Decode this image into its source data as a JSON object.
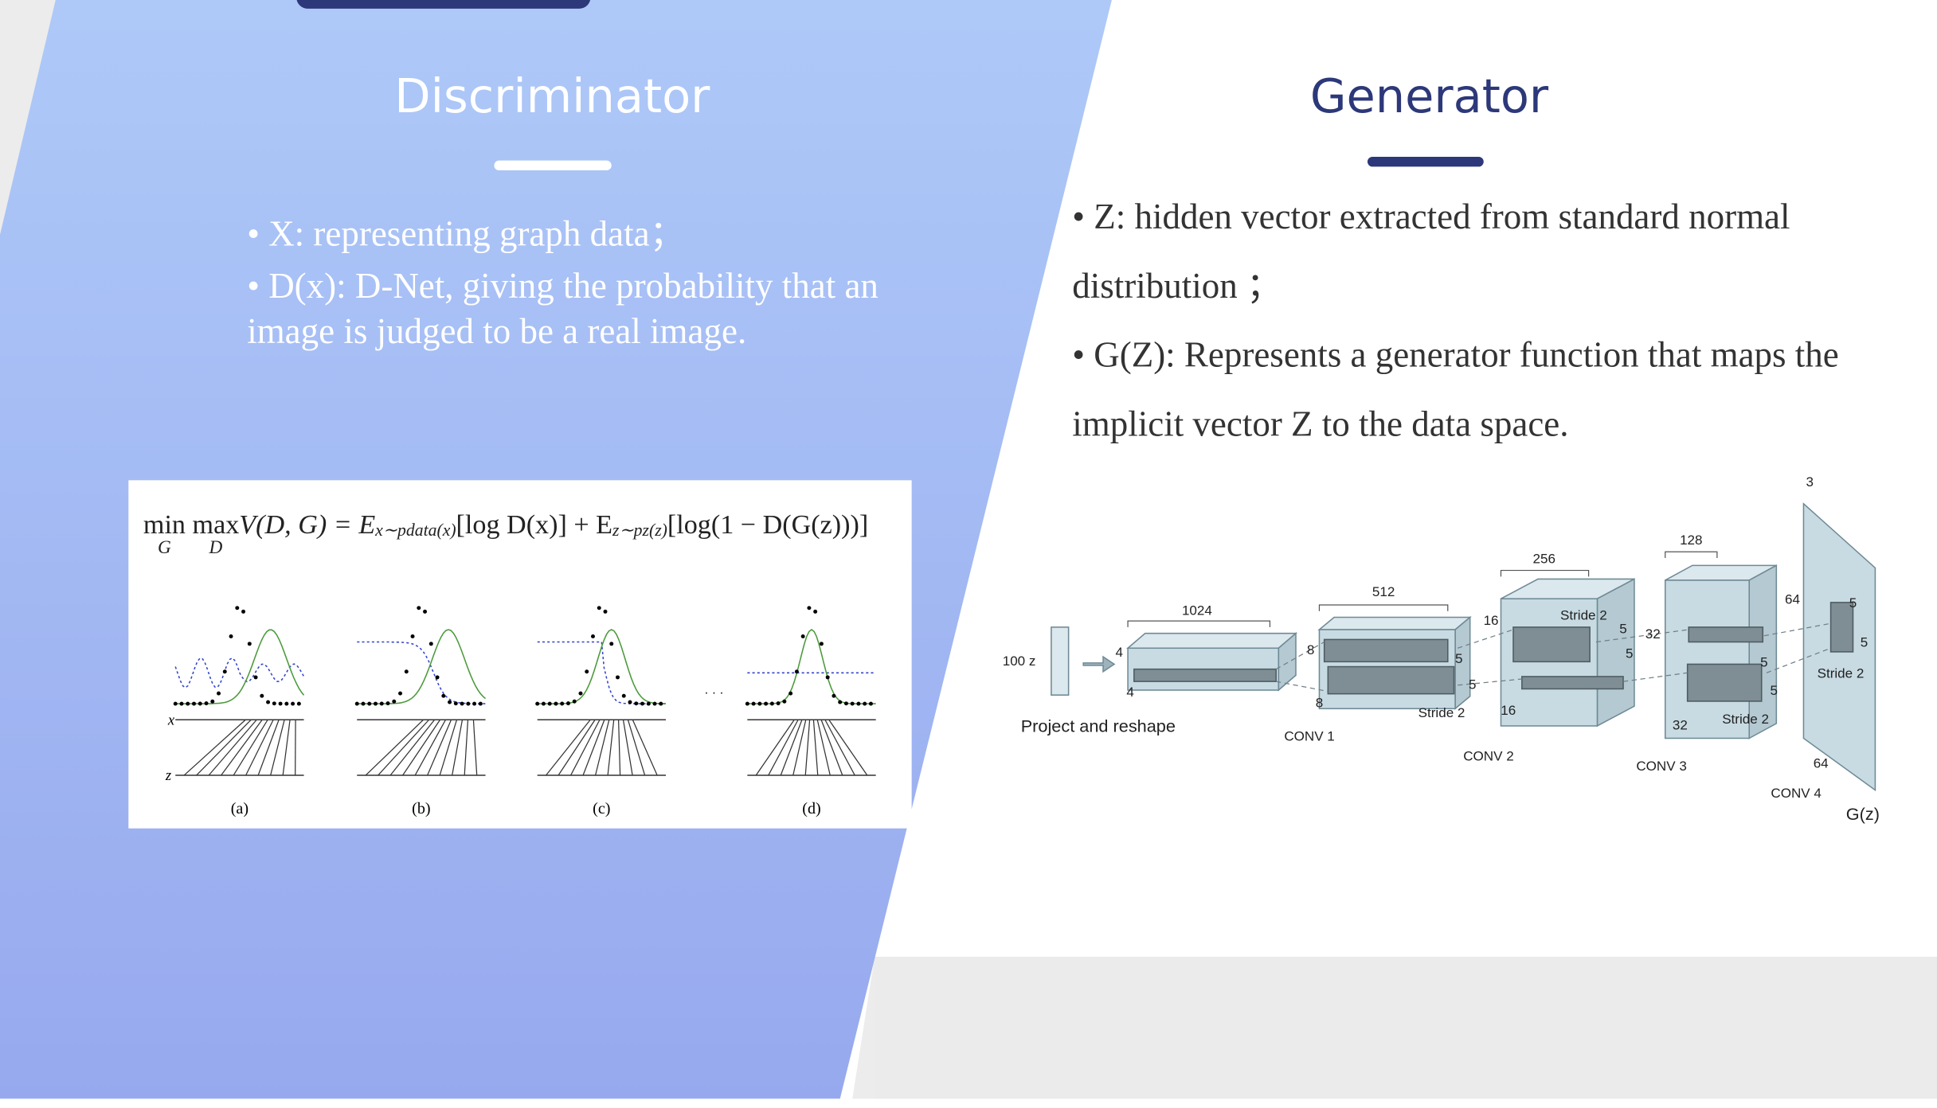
{
  "left": {
    "title": "Discriminator",
    "bullets": [
      "• X: representing graph data；",
      "• D(x): D-Net, giving the probability that an image is judged to be a real image."
    ]
  },
  "right": {
    "title": "Generator",
    "bullets": [
      "• Z: hidden vector extracted from standard normal distribution ；",
      "• G(Z): Represents a generator function that maps the implicit vector Z to the data space."
    ]
  },
  "gan_figure": {
    "formula": {
      "min": "min",
      "min_sub": "G",
      "max": "max",
      "max_sub": "D",
      "lhs": "V(D, G) = E",
      "sub1": "x∼pdata(x)",
      "mid": "[log D(x)] + E",
      "sub2": "z∼pz(z)",
      "rhs": "[log(1 − D(G(z)))]"
    },
    "axis_labels": [
      "x",
      "z"
    ],
    "ellipsis": "· · ·",
    "panels": [
      "(a)",
      "(b)",
      "(c)",
      "(d)"
    ]
  },
  "dcgan_figure": {
    "labels": [
      "100 z",
      "Project and reshape",
      "1024",
      "4",
      "4",
      "512",
      "8",
      "8",
      "CONV 1",
      "Stride 2",
      "5",
      "5",
      "256",
      "16",
      "16",
      "Stride 2",
      "5",
      "5",
      "CONV 2",
      "128",
      "32",
      "32",
      "5",
      "5",
      "Stride 2",
      "CONV 3",
      "64",
      "5",
      "5",
      "Stride 2",
      "64",
      "CONV 4",
      "3",
      "G(z)"
    ]
  }
}
